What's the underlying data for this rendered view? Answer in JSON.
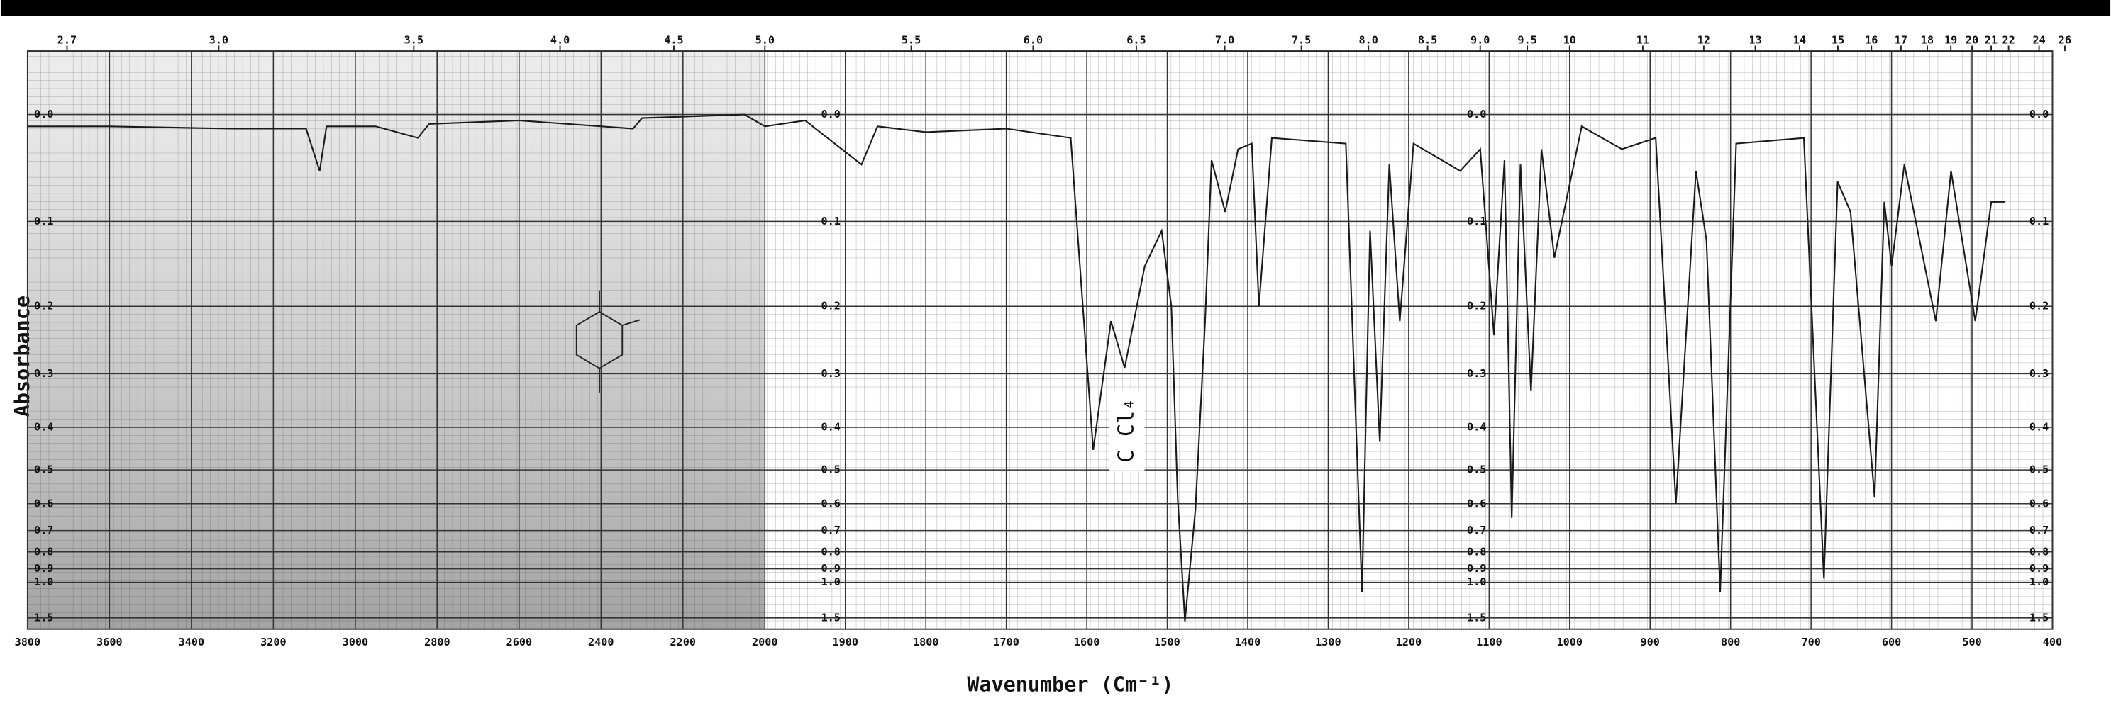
{
  "chart_data": {
    "type": "line",
    "y_label": "Absorbance",
    "x_label": "Wavenumber (Cm⁻¹)",
    "y_scale": "absorbance",
    "x_scale_break": 2000,
    "annotations": [
      {
        "text": "C Cl₄",
        "x": 1550
      }
    ],
    "xlim": [
      3800,
      400
    ],
    "ylim": [
      -0.05,
      2
    ],
    "xticks": [
      3800,
      3600,
      3400,
      3200,
      3000,
      2800,
      2600,
      2400,
      2200,
      2000,
      1900,
      1800,
      1700,
      1600,
      1500,
      1400,
      1300,
      1200,
      1100,
      1000,
      900,
      800,
      700,
      600,
      500,
      400
    ],
    "x2ticks": [
      2.7,
      {
        "value": 3,
        "label": "3.0"
      },
      3.5,
      {
        "value": 4,
        "label": "4.0"
      },
      4.5,
      {
        "value": 5,
        "label": "5.0"
      },
      5.5,
      {
        "value": 6,
        "label": "6.0"
      },
      6.5,
      {
        "value": 7,
        "label": "7.0"
      },
      7.5,
      {
        "value": 8,
        "label": "8.0"
      },
      8.5,
      {
        "value": 9,
        "label": "9.0"
      },
      9.5,
      10,
      11,
      12,
      13,
      14,
      15,
      16,
      17,
      18,
      19,
      20,
      21,
      22,
      24,
      26
    ],
    "yticks": [
      {
        "value": 0,
        "label": "0.0"
      },
      0.1,
      0.2,
      0.3,
      0.4,
      0.5,
      0.6,
      0.7,
      0.8,
      0.9,
      {
        "value": 1,
        "label": "1.0"
      },
      1.5
    ],
    "grid": true,
    "x": [
      3800,
      3600,
      3300,
      3120,
      3087,
      3070,
      2950,
      2847,
      2820,
      2600,
      2322,
      2300,
      2050,
      2000,
      1950,
      1880,
      1860,
      1800,
      1700,
      1620,
      1592,
      1570,
      1553,
      1528,
      1507,
      1495,
      1487,
      1478,
      1465,
      1453,
      1445,
      1428,
      1412,
      1395,
      1386,
      1370,
      1278,
      1258,
      1248,
      1236,
      1224,
      1211,
      1194,
      1136,
      1111,
      1094,
      1081,
      1072,
      1061,
      1048,
      1035,
      1019,
      985,
      935,
      893,
      868,
      843,
      830,
      813,
      793,
      709,
      684,
      667,
      651,
      621,
      609,
      600,
      584,
      545,
      526,
      496,
      476,
      459
    ],
    "series": [
      {
        "color": "#1a1a1a",
        "values": [
          0.01,
          0.01,
          0.012,
          0.012,
          0.05,
          0.01,
          0.01,
          0.02,
          0.008,
          0.005,
          0.012,
          0.003,
          0,
          0.01,
          0.005,
          0.044,
          0.01,
          0.015,
          0.012,
          0.02,
          0.45,
          0.22,
          0.29,
          0.15,
          0.11,
          0.2,
          0.58,
          1.6,
          0.62,
          0.22,
          0.04,
          0.09,
          0.03,
          0.025,
          0.2,
          0.02,
          0.025,
          1.09,
          0.11,
          0.43,
          0.044,
          0.22,
          0.025,
          0.05,
          0.03,
          0.24,
          0.04,
          0.65,
          0.044,
          0.33,
          0.03,
          0.14,
          0.01,
          0.03,
          0.02,
          0.6,
          0.05,
          0.12,
          1.09,
          0.025,
          0.02,
          0.97,
          0.06,
          0.09,
          0.58,
          0.08,
          0.15,
          0.044,
          0.22,
          0.05,
          0.22,
          0.08,
          0.08
        ]
      }
    ]
  }
}
